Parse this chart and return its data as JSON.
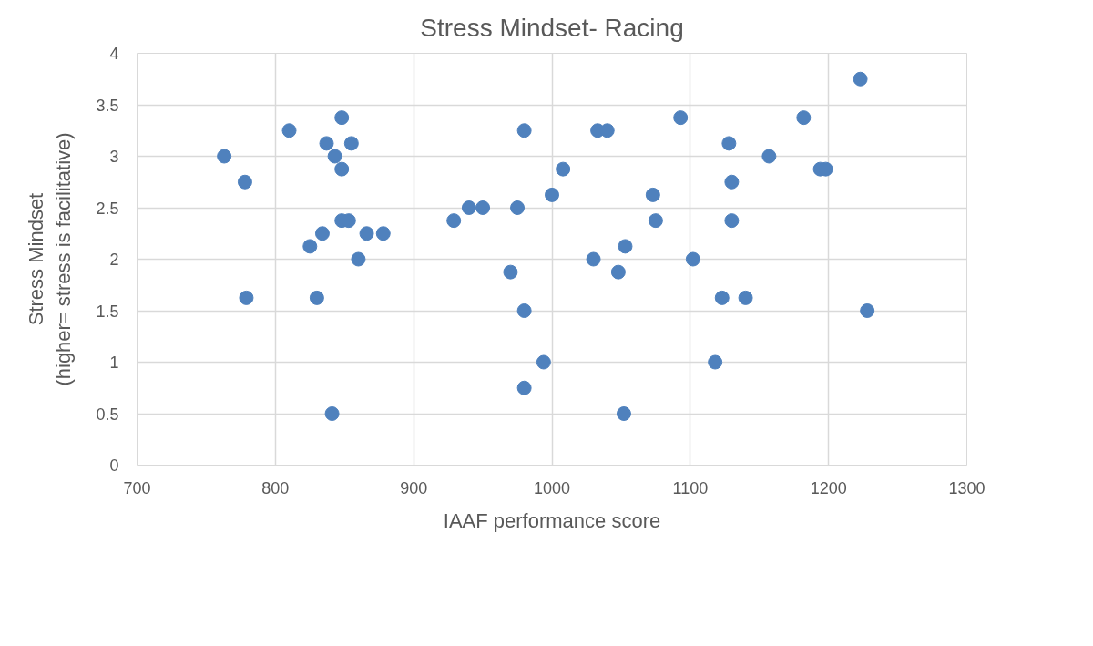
{
  "chart_data": {
    "type": "scatter",
    "title": "Stress Mindset- Racing",
    "xlabel": "IAAF performance score",
    "ylabel": "Stress Mindset\n(higher= stress is facilitative)",
    "x": [
      763,
      778,
      779,
      810,
      848,
      837,
      855,
      843,
      848,
      848,
      853,
      834,
      825,
      866,
      878,
      860,
      830,
      841,
      980,
      1033,
      1040,
      1093,
      1008,
      1000,
      1073,
      1075,
      929,
      940,
      950,
      975,
      970,
      980,
      994,
      980,
      1052,
      1030,
      1048,
      1053,
      1102,
      1223,
      1182,
      1128,
      1157,
      1194,
      1198,
      1130,
      1130,
      1123,
      1140,
      1228,
      1118
    ],
    "values": [
      3.0,
      2.75,
      1.625,
      3.25,
      3.375,
      3.125,
      3.125,
      3.0,
      2.875,
      2.375,
      2.375,
      2.25,
      2.125,
      2.25,
      2.25,
      2.0,
      1.625,
      0.5,
      3.25,
      3.25,
      3.25,
      3.375,
      2.875,
      2.625,
      2.625,
      2.375,
      2.375,
      2.5,
      2.5,
      2.5,
      1.875,
      1.5,
      1.0,
      0.75,
      0.5,
      2.0,
      1.875,
      2.125,
      2.0,
      3.75,
      3.375,
      3.125,
      3.0,
      2.875,
      2.875,
      2.75,
      2.375,
      1.625,
      1.625,
      1.5,
      1.0
    ],
    "color": "#4f81bd",
    "marker": "circle",
    "grid": true,
    "xlim": [
      700,
      1300
    ],
    "xticks": [
      700,
      800,
      900,
      1000,
      1100,
      1200,
      1300
    ],
    "ylim": [
      0,
      4
    ],
    "yticks": [
      0,
      {
        "value": 0.5,
        "label": "0.5"
      },
      1,
      {
        "value": 1.5,
        "label": "1.5"
      },
      2,
      {
        "value": 2.5,
        "label": "2.5"
      },
      3,
      {
        "value": 3.5,
        "label": "3.5"
      },
      4
    ]
  }
}
